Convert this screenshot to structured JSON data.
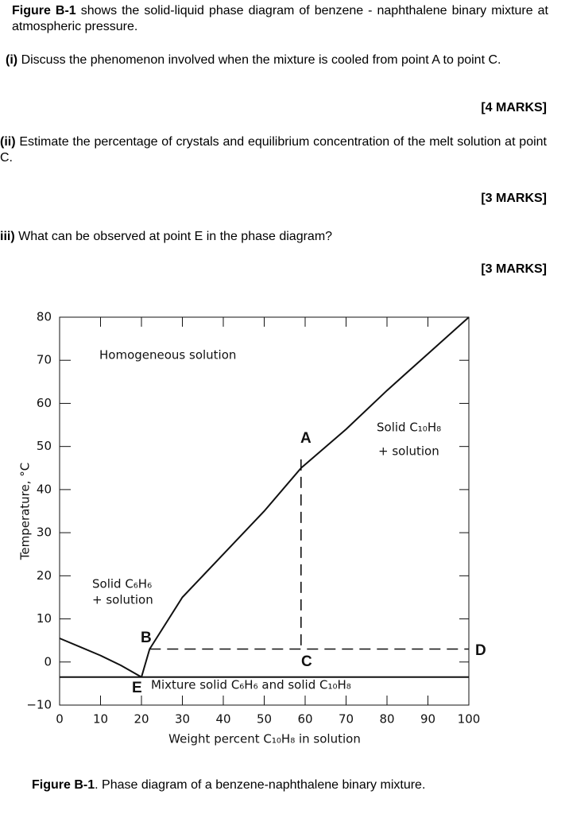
{
  "intro": {
    "bold": "Figure B-1",
    "text": " shows the solid-liquid phase diagram of benzene - naphthalene binary mixture at atmospheric pressure."
  },
  "questions": [
    {
      "label": "(i)",
      "text": "Discuss the phenomenon involved when the mixture is cooled from point A to point C.",
      "marks": "[4 MARKS]"
    },
    {
      "label": "(ii)",
      "text": "Estimate the percentage of crystals and equilibrium concentration of the melt solution at point C.",
      "marks": "[3 MARKS]"
    },
    {
      "label": "iii)",
      "text": "What can be observed at point E in the phase diagram?",
      "marks": "[3 MARKS]"
    }
  ],
  "caption": {
    "bold": "Figure B-1",
    "text": ". Phase diagram of a benzene-naphthalene binary mixture."
  },
  "chart_data": {
    "type": "line",
    "x_label": "Weight percent C₁₀H₈ in solution",
    "y_label": "Temperature, °C",
    "xlim": [
      0,
      100
    ],
    "xticks": [
      0,
      10,
      20,
      30,
      40,
      50,
      60,
      70,
      80,
      90,
      100
    ],
    "ylim": [
      -10,
      80
    ],
    "yticks": [
      {
        "value": -10,
        "label": "−10"
      },
      0,
      10,
      20,
      30,
      40,
      50,
      60,
      70,
      80
    ],
    "series": [
      {
        "color": "#000000",
        "dashed": false,
        "x": [
          0,
          5,
          10,
          15,
          20
        ],
        "values": [
          5.5,
          3.5,
          1.5,
          -0.8,
          -3.5
        ]
      },
      {
        "color": "#000000",
        "dashed": false,
        "x": [
          20,
          22,
          30,
          40,
          50,
          59,
          70,
          80,
          90,
          100
        ],
        "values": [
          -3.5,
          3,
          15,
          25,
          35,
          45,
          54,
          63,
          71.5,
          80
        ]
      },
      {
        "color": "#000000",
        "dashed": false,
        "x": [
          0,
          100
        ],
        "values": [
          -3.5,
          -3.5
        ]
      },
      {
        "color": "#000000",
        "dashed": true,
        "x": [
          59,
          59
        ],
        "values": [
          47,
          3
        ]
      },
      {
        "color": "#000000",
        "dashed": true,
        "x": [
          22,
          100
        ],
        "values": [
          3,
          3
        ]
      }
    ],
    "annotations": [
      "Homogeneous solution",
      "Solid C₁₀H₈",
      "+ solution",
      "Solid C₆H₆",
      "+ solution",
      "Mixture solid C₆H₆ and solid C₁₀H₈",
      "A",
      "B",
      "C",
      "D",
      "E"
    ]
  }
}
